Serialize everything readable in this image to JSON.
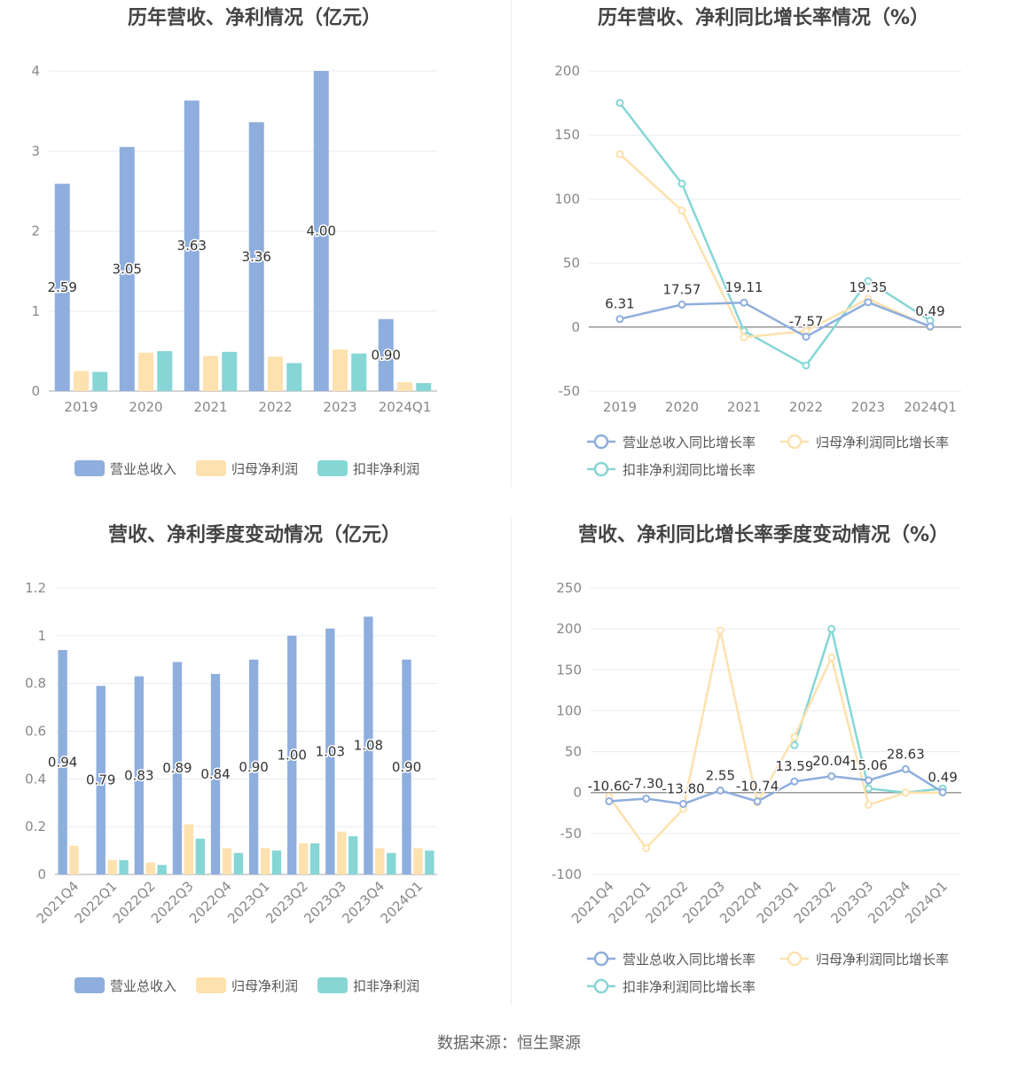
{
  "charts": [
    {
      "id": "annual-bar",
      "type": "bar",
      "title": "历年营收、净利情况（亿元）",
      "categories": [
        "2019",
        "2020",
        "2021",
        "2022",
        "2023",
        "2024Q1"
      ],
      "ylim": [
        0,
        4
      ],
      "yticks": [
        0,
        1,
        2,
        3,
        4
      ],
      "series": [
        {
          "name": "营业总收入",
          "color": "#8eaedd",
          "values": [
            2.59,
            3.05,
            3.63,
            3.36,
            4.0,
            0.9
          ],
          "labels": [
            "2.59",
            "3.05",
            "3.63",
            "3.36",
            "4.00",
            "0.90"
          ]
        },
        {
          "name": "归母净利润",
          "color": "#fde1ae",
          "values": [
            0.25,
            0.48,
            0.44,
            0.43,
            0.52,
            0.11
          ]
        },
        {
          "name": "扣非净利润",
          "color": "#86d6d6",
          "values": [
            0.24,
            0.5,
            0.49,
            0.35,
            0.47,
            0.1
          ]
        }
      ]
    },
    {
      "id": "annual-line",
      "type": "line",
      "title": "历年营收、净利同比增长率情况（%）",
      "categories": [
        "2019",
        "2020",
        "2021",
        "2022",
        "2023",
        "2024Q1"
      ],
      "ylim": [
        -50,
        200
      ],
      "yticks": [
        -50,
        0,
        50,
        100,
        150,
        200
      ],
      "series": [
        {
          "name": "营业总收入同比增长率",
          "color": "#8eaedd",
          "values": [
            6.31,
            17.57,
            19.11,
            -7.57,
            19.35,
            0.49
          ],
          "labels": [
            "6.31",
            "17.57",
            "19.11",
            "-7.57",
            "19.35",
            "0.49"
          ]
        },
        {
          "name": "归母净利润同比增长率",
          "color": "#fde1ae",
          "values": [
            135,
            91,
            -8,
            -3,
            22,
            0
          ]
        },
        {
          "name": "扣非净利润同比增长率",
          "color": "#86d6d6",
          "values": [
            175,
            112,
            -3,
            -30,
            36,
            5
          ]
        }
      ]
    },
    {
      "id": "quarter-bar",
      "type": "bar",
      "title": "营收、净利季度变动情况（亿元）",
      "categories": [
        "2021Q4",
        "2022Q1",
        "2022Q2",
        "2022Q3",
        "2022Q4",
        "2023Q1",
        "2023Q2",
        "2023Q3",
        "2023Q4",
        "2024Q1"
      ],
      "ylim": [
        0,
        1.2
      ],
      "yticks": [
        0,
        0.2,
        0.4,
        0.6,
        0.8,
        1,
        1.2
      ],
      "series": [
        {
          "name": "营业总收入",
          "color": "#8eaedd",
          "values": [
            0.94,
            0.79,
            0.83,
            0.89,
            0.84,
            0.9,
            1.0,
            1.03,
            1.08,
            0.9
          ],
          "labels": [
            "0.94",
            "0.79",
            "0.83",
            "0.89",
            "0.84",
            "0.90",
            "1.00",
            "1.03",
            "1.08",
            "0.90"
          ]
        },
        {
          "name": "归母净利润",
          "color": "#fde1ae",
          "values": [
            0.12,
            0.06,
            0.05,
            0.21,
            0.11,
            0.11,
            0.13,
            0.18,
            0.11,
            0.11
          ]
        },
        {
          "name": "扣非净利润",
          "color": "#86d6d6",
          "values": [
            0.0,
            0.06,
            0.04,
            0.15,
            0.09,
            0.1,
            0.13,
            0.16,
            0.09,
            0.1
          ]
        }
      ]
    },
    {
      "id": "quarter-line",
      "type": "line",
      "title": "营收、净利同比增长率季度变动情况（%）",
      "categories": [
        "2021Q4",
        "2022Q1",
        "2022Q2",
        "2022Q3",
        "2022Q4",
        "2023Q1",
        "2023Q2",
        "2023Q3",
        "2023Q4",
        "2024Q1"
      ],
      "ylim": [
        -100,
        250
      ],
      "yticks": [
        -100,
        -50,
        0,
        50,
        100,
        150,
        200,
        250
      ],
      "series": [
        {
          "name": "营业总收入同比增长率",
          "color": "#8eaedd",
          "values": [
            -10.6,
            -7.3,
            -13.8,
            2.55,
            -10.74,
            13.59,
            20.04,
            15.06,
            28.63,
            0.49
          ],
          "labels": [
            "-10.60",
            "-7.30",
            "-13.80",
            "2.55",
            "-10.74",
            "13.59",
            "20.04",
            "15.06",
            "28.63",
            "0.49"
          ]
        },
        {
          "name": "归母净利润同比增长率",
          "color": "#fde1ae",
          "values": [
            -5,
            -68,
            -20,
            198,
            -12,
            68,
            165,
            -15,
            0,
            0
          ]
        },
        {
          "name": "扣非净利润同比增长率",
          "color": "#86d6d6",
          "values": [
            null,
            null,
            null,
            null,
            null,
            58,
            200,
            5,
            0,
            5
          ]
        }
      ]
    }
  ],
  "source": "数据来源：恒生聚源"
}
